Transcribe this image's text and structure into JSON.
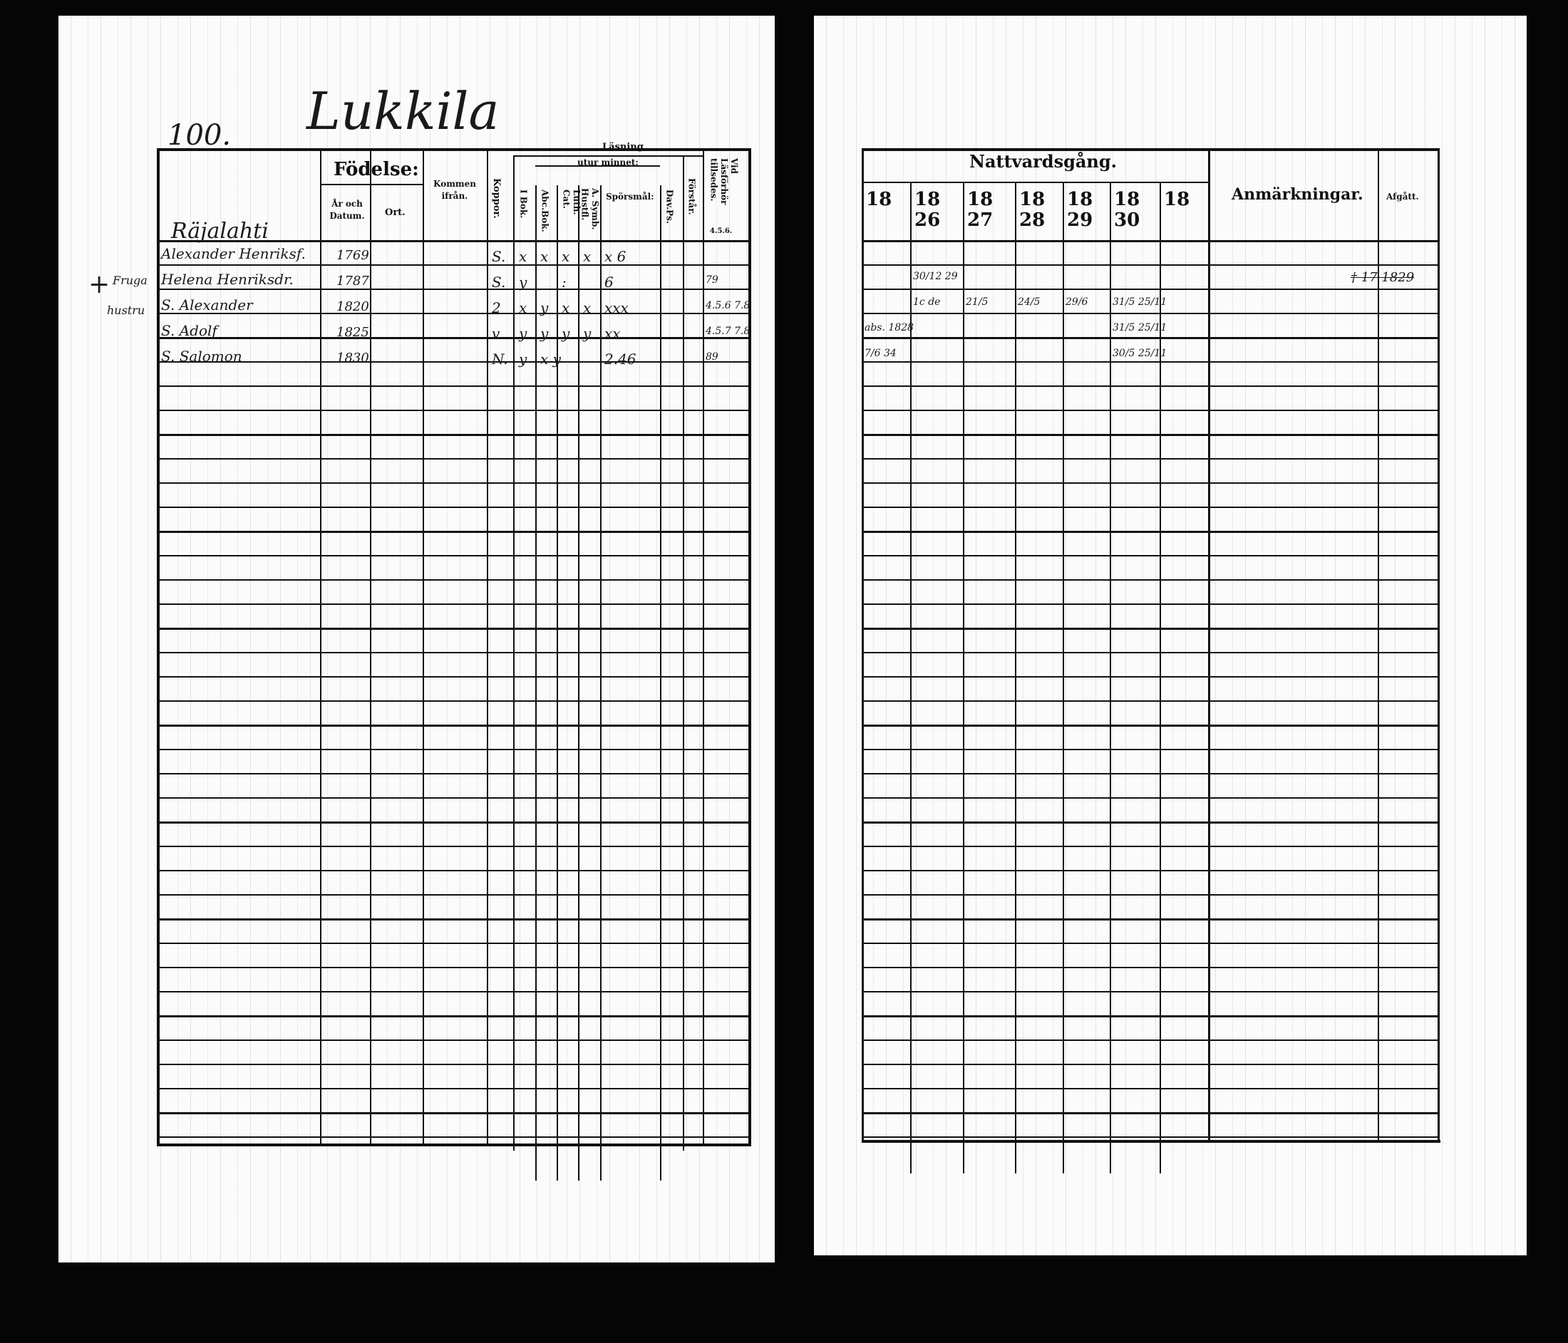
{
  "left_page": {
    "page_number": "100.",
    "village": "Lukkila",
    "margin_notes": [
      "+",
      "Fruga",
      "hustru"
    ],
    "headers": {
      "name_col": "",
      "fodelse": "Födelse:",
      "ar_och_datum": "År och Datum.",
      "ort": "Ort.",
      "kommen_ifran": "Kommen ifrån.",
      "koppor": "Koppor.",
      "lasning": "Läsning,",
      "utur_minnet": "utur minnet:",
      "i_bok": "I Bok.",
      "abc_bok": "Abc.Bok.",
      "luth_cat": "Luth. Cat.",
      "symb": "A. Symb. Hustfl.",
      "sporsmal": "Spörsmål:",
      "dav_ps": "Dav.Ps.",
      "forstar": "Förstår.",
      "vid_lasforhor": "Vid Läsförhör tillsedes.",
      "lasforhor_years": "4.5.6."
    },
    "rows": [
      {
        "name": "Räjalahti",
        "year": "",
        "koppor": "",
        "i_bok": "",
        "abc": "",
        "luth": "",
        "symb": "",
        "sporsmal": "",
        "vid": ""
      },
      {
        "name": "Alexander Henriksf.",
        "year": "1769",
        "koppor": "S.",
        "i_bok": "x",
        "abc": "x",
        "luth": "x",
        "symb": "x",
        "sporsmal": "x 6",
        "vid": ""
      },
      {
        "name": "Helena Henriksdr.",
        "year": "1787",
        "koppor": "S.",
        "i_bok": "y",
        "abc": "",
        "luth": ":",
        "symb": "",
        "sporsmal": "6",
        "vid": "79"
      },
      {
        "name": "S. Alexander",
        "year": "1820",
        "koppor": "2",
        "i_bok": "x",
        "abc": "y",
        "luth": "x",
        "symb": "x",
        "sporsmal": "xxx",
        "vid": "4.5.6 7.8"
      },
      {
        "name": "S. Adolf",
        "year": "1825",
        "koppor": "v",
        "i_bok": "y",
        "abc": "y",
        "luth": "y",
        "symb": "y",
        "sporsmal": "xx",
        "vid": "4.5.7 7.8"
      },
      {
        "name": "S. Salomon",
        "year": "1830",
        "koppor": "N.",
        "i_bok": "y",
        "abc": "x y",
        "luth": "",
        "symb": "",
        "sporsmal": "2.46",
        "vid": "89"
      }
    ]
  },
  "right_page": {
    "headers": {
      "nattvardsgang": "Nattvardsgång.",
      "years": [
        "18",
        "18 26",
        "18 27",
        "18 28",
        "18 29",
        "18 30",
        "18"
      ],
      "anmarkningar": "Anmärkningar.",
      "afgatt": "Afgått."
    },
    "rows": [
      {
        "cells": [
          "",
          "",
          "",
          "",
          "",
          "",
          ""
        ],
        "anm": "",
        "afgatt": ""
      },
      {
        "cells": [
          "",
          "30/12 29",
          "",
          "",
          "",
          "",
          ""
        ],
        "anm": "",
        "afgatt": "† 17 1829"
      },
      {
        "cells": [
          "",
          "1c  de",
          "21/5",
          "24/5",
          "29/6",
          "31/5  25/11",
          ""
        ],
        "anm": "",
        "afgatt": ""
      },
      {
        "cells": [
          "abs. 1828",
          "",
          "",
          "",
          "",
          "31/5  25/11",
          ""
        ],
        "anm": "",
        "afgatt": ""
      },
      {
        "cells": [
          "7/6 34",
          "",
          "",
          "",
          "",
          "30/5  25/11",
          ""
        ],
        "anm": "",
        "afgatt": ""
      }
    ]
  }
}
